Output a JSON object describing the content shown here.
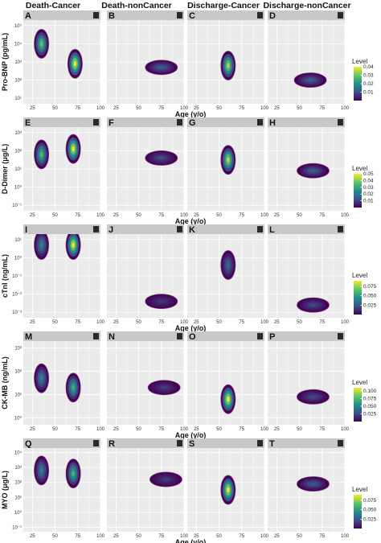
{
  "figure": {
    "column_titles": [
      "Death-Cancer",
      "Death-nonCancer",
      "Discharge-Cancer",
      "Discharge-nonCancer"
    ],
    "x_axis_label": "Age (y/o)",
    "legend_title": "Level",
    "colors": {
      "strip": "#c8c8c8",
      "panel_bg": "#ebebeb",
      "grid": "#ffffff",
      "viridis": [
        "#440154",
        "#3b528b",
        "#21908c",
        "#5dc863",
        "#fde725"
      ]
    }
  },
  "chart_data": [
    {
      "type": "contour",
      "marker": "Pro-BNP",
      "ylabel": "Pro-BNP (pg/mL)",
      "panels": [
        "A",
        "B",
        "C",
        "D"
      ],
      "x_ticks": [
        25,
        50,
        75,
        100
      ],
      "y_ticks": [
        "10⁵",
        "10⁴",
        "10³",
        "10²",
        "10¹"
      ],
      "legend_ticks": [
        "0.04",
        "0.03",
        "0.02",
        "0.01"
      ],
      "density_peaks": [
        [
          {
            "age": 35,
            "ylog": 4.0,
            "level": 0.03
          },
          {
            "age": 72,
            "ylog": 2.9,
            "level": 0.04
          }
        ],
        [
          {
            "age": 75,
            "ylog": 2.7,
            "level": 0.012
          }
        ],
        [
          {
            "age": 60,
            "ylog": 2.8,
            "level": 0.035
          }
        ],
        [
          {
            "age": 62,
            "ylog": 2.0,
            "level": 0.012
          }
        ]
      ]
    },
    {
      "type": "contour",
      "marker": "D-Dimer",
      "ylabel": "D-Dimer (μg/L)",
      "panels": [
        "E",
        "F",
        "G",
        "H"
      ],
      "x_ticks": [
        25,
        50,
        75,
        100
      ],
      "y_ticks": [
        "10³",
        "10²",
        "10¹",
        "10⁰",
        "10⁻¹"
      ],
      "legend_ticks": [
        "0.05",
        "0.04",
        "0.03",
        "0.02",
        "0.01"
      ],
      "density_peaks": [
        [
          {
            "age": 35,
            "ylog": 1.8,
            "level": 0.035
          },
          {
            "age": 70,
            "ylog": 2.1,
            "level": 0.05
          }
        ],
        [
          {
            "age": 75,
            "ylog": 1.6,
            "level": 0.012
          }
        ],
        [
          {
            "age": 60,
            "ylog": 1.5,
            "level": 0.045
          }
        ],
        [
          {
            "age": 65,
            "ylog": 0.9,
            "level": 0.015
          }
        ]
      ]
    },
    {
      "type": "contour",
      "marker": "cTnI",
      "ylabel": "cTnI (ng/mL)",
      "panels": [
        "I",
        "J",
        "K",
        "L"
      ],
      "x_ticks": [
        25,
        50,
        75,
        100
      ],
      "y_ticks": [
        "10¹",
        "10⁰",
        "10⁻¹",
        "10⁻²",
        "10⁻³"
      ],
      "legend_ticks": [
        "0.075",
        "0.050",
        "0.025"
      ],
      "density_peaks": [
        [
          {
            "age": 35,
            "ylog": 0.7,
            "level": 0.04
          },
          {
            "age": 70,
            "ylog": 0.7,
            "level": 0.09
          }
        ],
        [
          {
            "age": 75,
            "ylog": -2.4,
            "level": 0.015
          }
        ],
        [
          {
            "age": 60,
            "ylog": -0.4,
            "level": 0.03
          }
        ],
        [
          {
            "age": 65,
            "ylog": -2.6,
            "level": 0.02
          }
        ]
      ]
    },
    {
      "type": "contour",
      "marker": "CK-MB",
      "ylabel": "CK-MB (ng/mL)",
      "panels": [
        "M",
        "N",
        "O",
        "P"
      ],
      "x_ticks": [
        25,
        50,
        75,
        100
      ],
      "y_ticks": [
        "10³",
        "10²",
        "10¹",
        "10⁰"
      ],
      "legend_ticks": [
        "0.100",
        "0.075",
        "0.050",
        "0.025"
      ],
      "density_peaks": [
        [
          {
            "age": 35,
            "ylog": 1.7,
            "level": 0.05
          },
          {
            "age": 70,
            "ylog": 1.3,
            "level": 0.07
          }
        ],
        [
          {
            "age": 78,
            "ylog": 1.3,
            "level": 0.02
          }
        ],
        [
          {
            "age": 60,
            "ylog": 0.8,
            "level": 0.11
          }
        ],
        [
          {
            "age": 65,
            "ylog": 0.9,
            "level": 0.025
          }
        ]
      ]
    },
    {
      "type": "contour",
      "marker": "MYO",
      "ylabel": "MYO (μg/L)",
      "panels": [
        "Q",
        "R",
        "S",
        "T"
      ],
      "x_ticks": [
        25,
        50,
        75,
        100
      ],
      "y_ticks": [
        "10⁴",
        "10³",
        "10²",
        "10¹",
        "10⁰",
        "10⁻¹"
      ],
      "legend_ticks": [
        "0.075",
        "0.050",
        "0.025"
      ],
      "density_peaks": [
        [
          {
            "age": 35,
            "ylog": 2.8,
            "level": 0.04
          },
          {
            "age": 70,
            "ylog": 2.6,
            "level": 0.06
          }
        ],
        [
          {
            "age": 80,
            "ylog": 2.2,
            "level": 0.015
          }
        ],
        [
          {
            "age": 60,
            "ylog": 1.5,
            "level": 0.09
          }
        ],
        [
          {
            "age": 65,
            "ylog": 1.9,
            "level": 0.025
          }
        ]
      ]
    }
  ]
}
